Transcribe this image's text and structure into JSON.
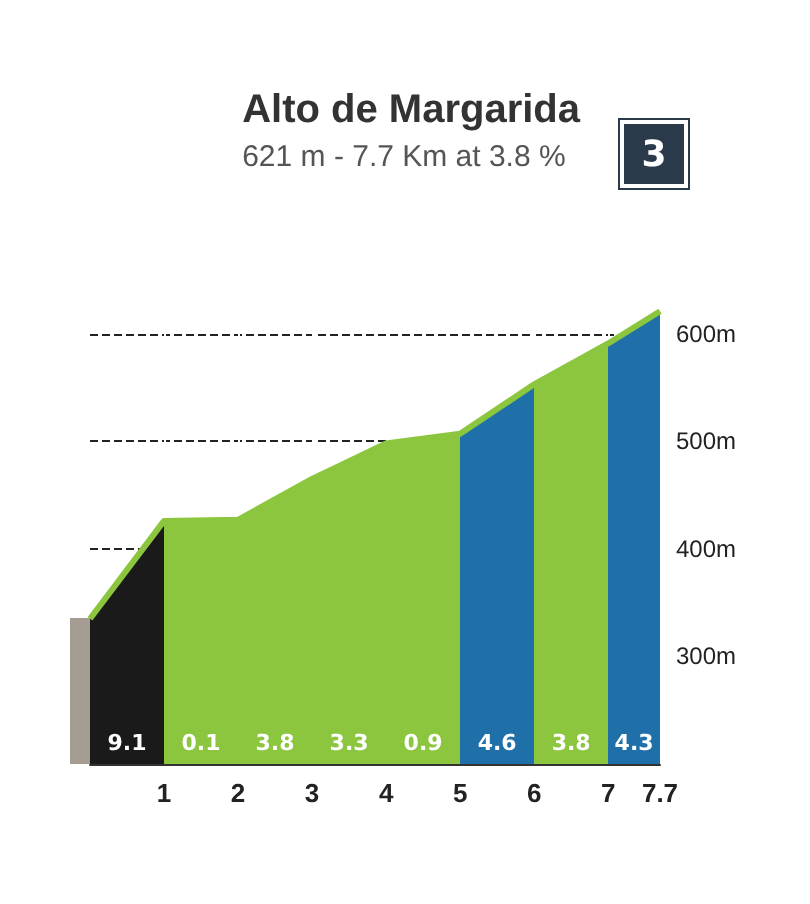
{
  "chart_data": {
    "type": "area",
    "title": "Alto de Margarida",
    "subtitle": "621 m - 7.7 Km at 3.8 %",
    "x": [
      0,
      1,
      2,
      3,
      4,
      5,
      6,
      7,
      7.7
    ],
    "series": [
      {
        "color": "#8cc63f",
        "values": [
          335,
          426,
          427,
          465,
          498,
          507,
          553,
          591,
          621
        ],
        "colors": [
          "#a59d92",
          "#1a1a1a",
          "#8cc63f",
          "#8cc63f",
          "#8cc63f",
          "#8cc63f",
          "#1f6fa8",
          "#8cc63f",
          "#1f6fa8"
        ]
      }
    ],
    "xlim": [
      0,
      7.7
    ],
    "xticks": [
      1,
      2,
      3,
      4,
      5,
      6,
      7,
      7.7
    ],
    "ylim": [
      200,
      650
    ],
    "yticks": [
      {
        "value": 300,
        "label": "300m"
      },
      {
        "value": 400,
        "label": "400m"
      },
      {
        "value": 500,
        "label": "500m"
      },
      {
        "value": 600,
        "label": "600m"
      }
    ],
    "grid": true,
    "line_style": "dashed",
    "annotations": [
      "9.1",
      "0.1",
      "3.8",
      "3.3",
      "0.9",
      "4.6",
      "3.8",
      "4.3",
      "3"
    ]
  }
}
